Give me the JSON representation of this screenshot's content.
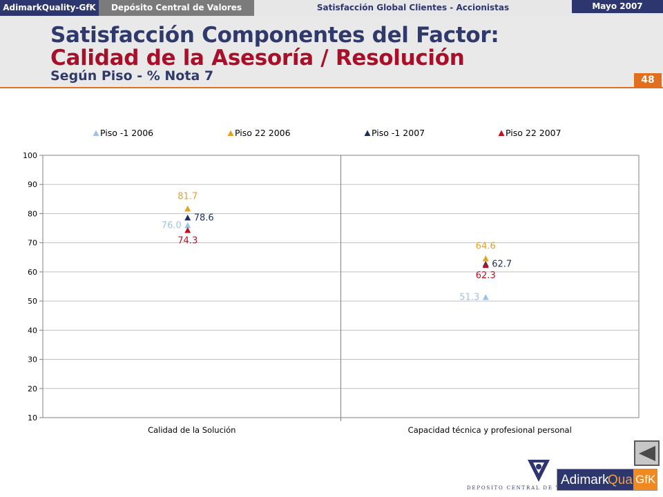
{
  "header": {
    "brand": "AdimarkQuality-GfK",
    "client": "Depósito Central de Valores",
    "study": "Satisfacción Global Clientes - Accionistas",
    "date": "Mayo 2007"
  },
  "title": {
    "line1": "Satisfacción Componentes del Factor:",
    "line2": "Calidad de la Asesoría / Resolución",
    "line3": "Según Piso - % Nota 7"
  },
  "page_number": "48",
  "colors": {
    "navy": "#2e3670",
    "orange_accent": "#e07020",
    "title_red": "#a8102a"
  },
  "chart_data": {
    "type": "scatter",
    "categories": [
      "Calidad de la Solución",
      "Capacidad técnica y profesional personal"
    ],
    "ylim": [
      10,
      100
    ],
    "yticks": [
      10,
      20,
      30,
      40,
      50,
      60,
      70,
      80,
      90,
      100
    ],
    "grid": true,
    "legend": "top",
    "marker": "triangle",
    "series": [
      {
        "name": "Piso -1 2006",
        "color": "#9cc3e5",
        "values": [
          76.0,
          51.3
        ]
      },
      {
        "name": "Piso 22 2006",
        "color": "#e8a020",
        "values": [
          81.7,
          64.6
        ]
      },
      {
        "name": "Piso -1 2007",
        "color": "#1f2d5a",
        "values": [
          78.6,
          62.7
        ]
      },
      {
        "name": "Piso 22 2007",
        "color": "#c0101c",
        "values": [
          74.3,
          62.3
        ]
      }
    ]
  },
  "nav": {
    "back_icon": "back-arrow-icon"
  },
  "logos": {
    "dcv_caption": "DEPOSITO CENTRAL DE VALORES",
    "adimark_part1": "Adimark",
    "adimark_part2": "Quality",
    "adimark_part3": "GfK"
  }
}
